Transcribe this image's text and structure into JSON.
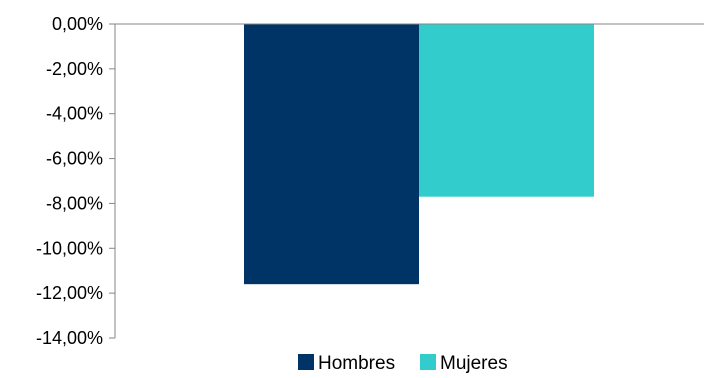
{
  "chart_data": {
    "type": "bar",
    "categories": [
      ""
    ],
    "series": [
      {
        "name": "Hombres",
        "values": [
          -11.6
        ],
        "color": "#003366"
      },
      {
        "name": "Mujeres",
        "values": [
          -7.7
        ],
        "color": "#33CCCC"
      }
    ],
    "title": "",
    "xlabel": "",
    "ylabel": "",
    "ylim": [
      -14,
      0
    ],
    "yticks": [
      0,
      -2,
      -4,
      -6,
      -8,
      -10,
      -12,
      -14
    ],
    "ytick_labels": [
      "0,00%",
      "-2,00%",
      "-4,00%",
      "-6,00%",
      "-8,00%",
      "-10,00%",
      "-12,00%",
      "-14,00%"
    ],
    "grid": false,
    "legend_position": "bottom"
  }
}
